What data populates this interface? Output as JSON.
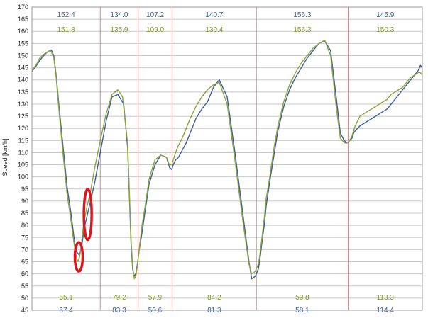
{
  "chart_data": {
    "type": "line",
    "ylabel": "Speed [km/h]",
    "ylim": [
      45,
      170
    ],
    "xlim": [
      0,
      1000
    ],
    "yticks": [
      45,
      50,
      55,
      60,
      65,
      70,
      75,
      80,
      85,
      90,
      95,
      100,
      105,
      110,
      115,
      120,
      125,
      130,
      135,
      140,
      145,
      150,
      155,
      160,
      165,
      170
    ],
    "grid": true,
    "segment_boundaries": [
      0,
      175,
      272,
      359,
      575,
      810,
      1000
    ],
    "segment_labels": {
      "top_blue": [
        "152.4",
        "134.0",
        "107.2",
        "140.7",
        "156.3",
        "145.9"
      ],
      "top_green": [
        "151.8",
        "135.9",
        "109.0",
        "139.4",
        "156.3",
        "150.3"
      ],
      "bottom_green": [
        "65.1",
        "79.2",
        "57.9",
        "84.2",
        "59.8",
        "113.3"
      ],
      "bottom_blue": [
        "67.4",
        "83.3",
        "59.6",
        "81.3",
        "58.1",
        "114.4"
      ]
    },
    "colors": {
      "blue": "#3f5e9a",
      "green": "#8ea33f",
      "top_blue_text": "#3f5e9a",
      "top_green_text": "#7f9a32",
      "grid": "#c8c8c8",
      "boundary": "#d98a8a",
      "annotation": "#e0141c"
    },
    "series": [
      {
        "color_key": "blue",
        "x": [
          0,
          10,
          20,
          30,
          40,
          45,
          50,
          56,
          62,
          70,
          80,
          90,
          100,
          110,
          115,
          120,
          124,
          128,
          134,
          140,
          150,
          160,
          175,
          190,
          205,
          220,
          235,
          245,
          250,
          254,
          258,
          262,
          266,
          270,
          276,
          282,
          290,
          300,
          315,
          330,
          345,
          352,
          358,
          362,
          368,
          375,
          385,
          395,
          405,
          420,
          435,
          450,
          465,
          480,
          500,
          520,
          540,
          556,
          563,
          572,
          580,
          584,
          590,
          595,
          600,
          610,
          620,
          630,
          645,
          660,
          675,
          690,
          705,
          720,
          735,
          750,
          765,
          780,
          790,
          800,
          806,
          810,
          814,
          820,
          824,
          828,
          834,
          840,
          850,
          860,
          870,
          880,
          890,
          900,
          910,
          920,
          930,
          940,
          950,
          960,
          970,
          980,
          990,
          995,
          1000
        ],
        "y": [
          143.5,
          145.5,
          148,
          150,
          151.5,
          152,
          152.3,
          150,
          142,
          128,
          112,
          96,
          85,
          72,
          69,
          68,
          69,
          72,
          79,
          83,
          90,
          97,
          110,
          123,
          133,
          134,
          130,
          112,
          90,
          72,
          62,
          59,
          60,
          64,
          71,
          77,
          86,
          97,
          105,
          109,
          108,
          104,
          103,
          105,
          107,
          108,
          111,
          114,
          118,
          124,
          128,
          131,
          137,
          140,
          133,
          110,
          85,
          65,
          58,
          59,
          62,
          66,
          74,
          80,
          88,
          99,
          109,
          119,
          129,
          136,
          141,
          145,
          149,
          152,
          155,
          156,
          152,
          132,
          118,
          115,
          114,
          114,
          115,
          116,
          118,
          119,
          120,
          121,
          122,
          123,
          124,
          125,
          126,
          127,
          128,
          130,
          132,
          134,
          136,
          138,
          140,
          142,
          144,
          146,
          145
        ]
      },
      {
        "color_key": "green",
        "x": [
          0,
          10,
          20,
          30,
          40,
          45,
          50,
          56,
          62,
          70,
          80,
          90,
          100,
          110,
          115,
          118,
          122,
          126,
          132,
          140,
          150,
          160,
          175,
          190,
          205,
          220,
          232,
          245,
          250,
          254,
          258,
          262,
          266,
          270,
          276,
          282,
          290,
          300,
          315,
          330,
          345,
          352,
          358,
          362,
          368,
          375,
          385,
          395,
          405,
          420,
          435,
          450,
          465,
          480,
          500,
          520,
          540,
          556,
          563,
          572,
          580,
          584,
          590,
          595,
          600,
          610,
          620,
          630,
          645,
          660,
          675,
          690,
          705,
          720,
          735,
          750,
          765,
          780,
          790,
          800,
          806,
          810,
          814,
          820,
          824,
          828,
          834,
          840,
          850,
          860,
          870,
          880,
          890,
          900,
          910,
          920,
          930,
          940,
          950,
          960,
          970,
          980,
          990,
          995,
          1000
        ],
        "y": [
          144,
          146,
          149,
          150.5,
          151.5,
          152,
          151.5,
          149,
          141,
          126,
          109,
          93,
          82,
          70,
          66,
          65.1,
          67,
          71,
          80,
          87,
          94,
          103,
          115,
          126,
          134,
          135.9,
          133,
          114,
          92,
          74,
          63,
          58,
          59,
          63,
          72,
          80,
          88,
          99,
          107,
          109,
          108,
          105,
          105,
          107,
          110,
          113,
          116,
          120,
          124,
          129,
          133,
          136,
          138,
          139,
          130,
          107,
          82,
          64,
          60,
          61,
          64,
          68,
          76,
          83,
          91,
          101,
          112,
          121,
          131,
          138,
          143,
          147,
          150,
          153,
          155,
          156.3,
          150,
          128,
          116,
          114,
          114,
          114,
          115,
          117,
          119,
          121,
          123,
          125,
          126,
          127,
          128,
          129,
          130,
          131,
          132,
          134,
          135,
          136,
          137,
          139,
          141,
          142,
          143,
          143,
          142
        ]
      }
    ],
    "annotations": [
      {
        "shape": "ellipse",
        "cx": 120,
        "cy": 67,
        "rx": 10,
        "ry": 6
      },
      {
        "shape": "ellipse",
        "cx": 143,
        "cy": 84.5,
        "rx": 10,
        "ry": 10.5
      }
    ]
  }
}
